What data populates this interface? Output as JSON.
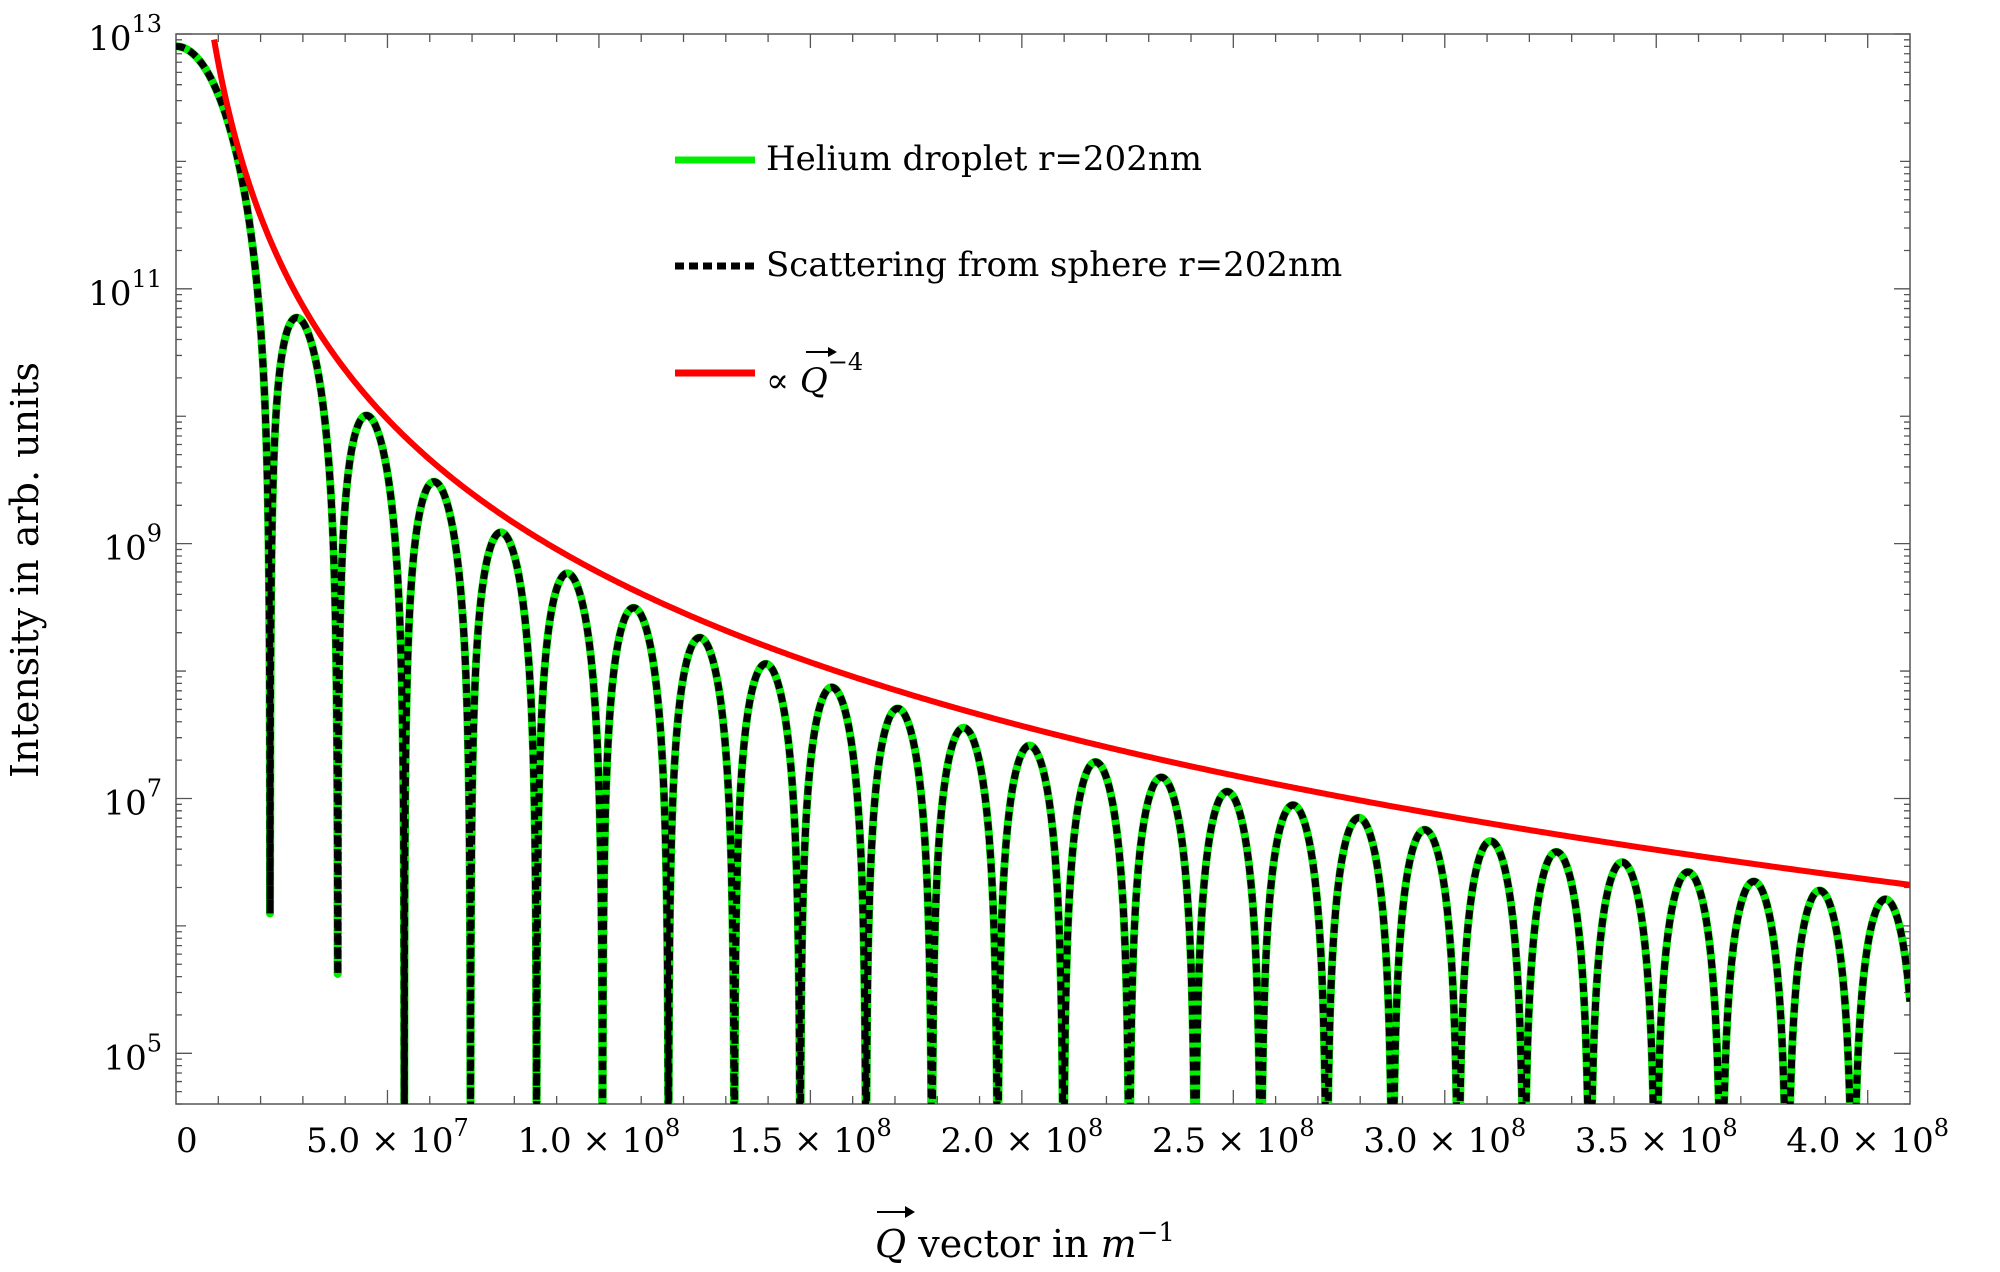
{
  "chart_data": {
    "type": "line",
    "title": "",
    "xlabel": {
      "symbol": "Q",
      "text": " vector in ",
      "unit_base": "m",
      "unit_exp": "−1"
    },
    "ylabel": "Intensity in arb. units",
    "xlim": [
      0,
      410000000.0
    ],
    "ylim": [
      40000,
      10000000000000.0
    ],
    "y_scale": "log",
    "grid": false,
    "legend_position": "top-center",
    "x_ticks": [
      {
        "value": 0,
        "mantissa": "0",
        "exp": ""
      },
      {
        "value": 50000000.0,
        "mantissa": "5.0 × 10",
        "exp": "7"
      },
      {
        "value": 100000000.0,
        "mantissa": "1.0 × 10",
        "exp": "8"
      },
      {
        "value": 150000000.0,
        "mantissa": "1.5 × 10",
        "exp": "8"
      },
      {
        "value": 200000000.0,
        "mantissa": "2.0 × 10",
        "exp": "8"
      },
      {
        "value": 250000000.0,
        "mantissa": "2.5 × 10",
        "exp": "8"
      },
      {
        "value": 300000000.0,
        "mantissa": "3.0 × 10",
        "exp": "8"
      },
      {
        "value": 350000000.0,
        "mantissa": "3.5 × 10",
        "exp": "8"
      },
      {
        "value": 400000000.0,
        "mantissa": "4.0 × 10",
        "exp": "8"
      }
    ],
    "y_ticks": [
      {
        "value": 100000.0,
        "base": "10",
        "exp": "5"
      },
      {
        "value": 10000000.0,
        "base": "10",
        "exp": "7"
      },
      {
        "value": 1000000000.0,
        "base": "10",
        "exp": "9"
      },
      {
        "value": 100000000000.0,
        "base": "10",
        "exp": "11"
      },
      {
        "value": 10000000000000.0,
        "base": "10",
        "exp": "13"
      }
    ],
    "series": [
      {
        "name": "Helium droplet r=202nm",
        "color": "#00ee00",
        "style": "solid",
        "model": "sphere_form_factor",
        "radius_m": 2.02e-07,
        "I0": 8000000000000.0,
        "x_range": [
          0,
          410000000.0
        ]
      },
      {
        "name": "Scattering from sphere r=202nm",
        "color": "#000000",
        "style": "dashed",
        "model": "sphere_form_factor",
        "radius_m": 2.02e-07,
        "I0": 8000000000000.0,
        "x_range": [
          0,
          410000000.0
        ]
      },
      {
        "legend_prefix": "∝ ",
        "legend_symbol": "Q",
        "legend_exp": "−4",
        "color": "#ff0000",
        "style": "solid",
        "model": "power_law",
        "exponent": -4,
        "x_range": [
          9000000.0,
          410000000.0
        ],
        "anchor": {
          "x": 410000000.0,
          "y": 2100000.0
        }
      }
    ]
  }
}
